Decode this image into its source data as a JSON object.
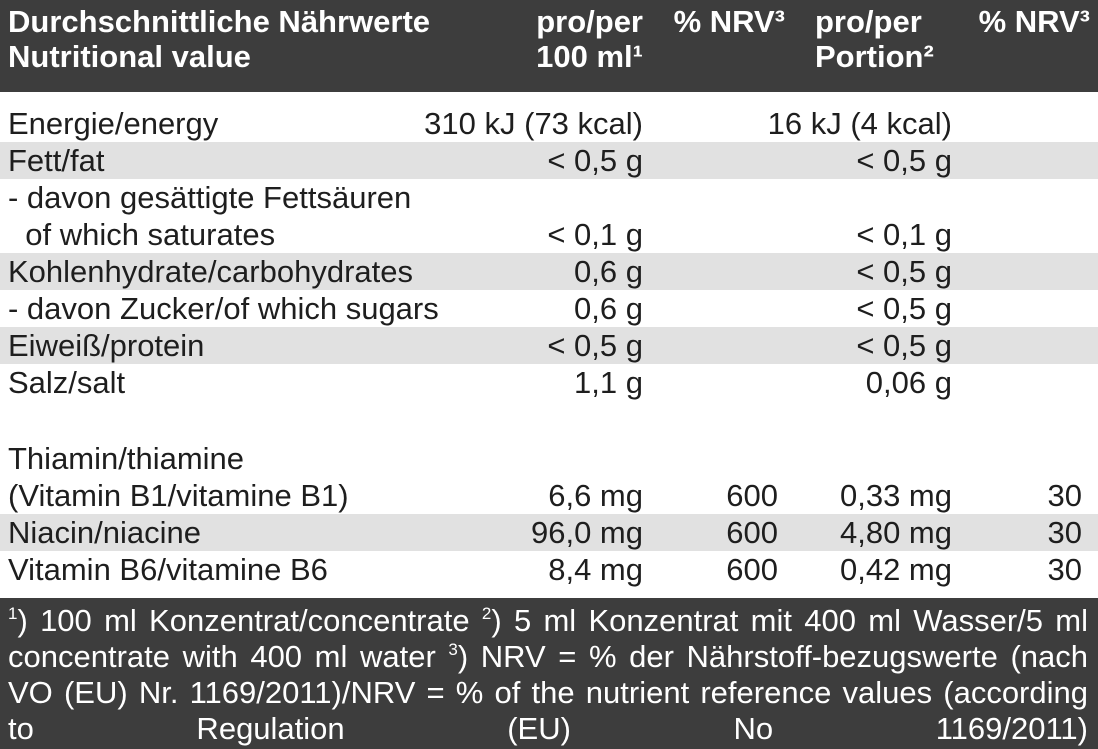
{
  "header": {
    "columns": [
      [
        "Durchschnittliche Nährwerte",
        "Nutritional value"
      ],
      [
        "pro/per",
        "100 ml¹"
      ],
      [
        "% NRV³"
      ],
      [
        "pro/per",
        "Portion²"
      ],
      [
        "% NRV³"
      ]
    ]
  },
  "table": {
    "macronutrients": [
      {
        "label": [
          "Energie/energy"
        ],
        "per_100ml": "310 kJ (73 kcal)",
        "per_portion": "16 kJ (4 kcal)"
      },
      {
        "label": [
          "Fett/fat"
        ],
        "per_100ml": "< 0,5 g",
        "per_portion": "< 0,5 g"
      },
      {
        "label": [
          "- davon gesättigte Fettsäuren",
          "  of which saturates"
        ],
        "per_100ml": "< 0,1 g",
        "per_portion": "< 0,1 g"
      },
      {
        "label": [
          "Kohlenhydrate/carbohydrates"
        ],
        "per_100ml": "0,6 g",
        "per_portion": "< 0,5 g"
      },
      {
        "label": [
          "- davon Zucker/of which sugars"
        ],
        "per_100ml": "0,6 g",
        "per_portion": "< 0,5 g"
      },
      {
        "label": [
          "Eiweiß/protein"
        ],
        "per_100ml": "< 0,5 g",
        "per_portion": "< 0,5 g"
      },
      {
        "label": [
          "Salz/salt"
        ],
        "per_100ml": "1,1 g",
        "per_portion": "0,06 g"
      }
    ],
    "vitamins": [
      {
        "label": [
          "Thiamin/thiamine",
          "(Vitamin B1/vitamine B1)"
        ],
        "per_100ml": "6,6 mg",
        "nrv": 600,
        "per_portion": "0,33 mg",
        "nrv_portion": 30
      },
      {
        "label": [
          "Niacin/niacine"
        ],
        "per_100ml": "96,0 mg",
        "nrv": 600,
        "per_portion": "4,80 mg",
        "nrv_portion": 30
      },
      {
        "label": [
          "Vitamin B6/vitamine B6"
        ],
        "per_100ml": "8,4 mg",
        "nrv": 600,
        "per_portion": "0,42 mg",
        "nrv_portion": 30
      }
    ]
  },
  "footer": {
    "notes": [
      {
        "mark": "1",
        "text": ") 100 ml Konzentrat/concentrate "
      },
      {
        "mark": "2",
        "text": ") 5 ml Konzentrat mit 400 ml Wasser/5 ml concentrate with 400 ml water "
      },
      {
        "mark": "3",
        "text": ") NRV = % der Nährstoff-bezugswerte (nach VO (EU) Nr. 1169/2011)/NRV = % of the nutrient reference values (according to Regulation (EU) No 1169/2011)"
      }
    ]
  }
}
